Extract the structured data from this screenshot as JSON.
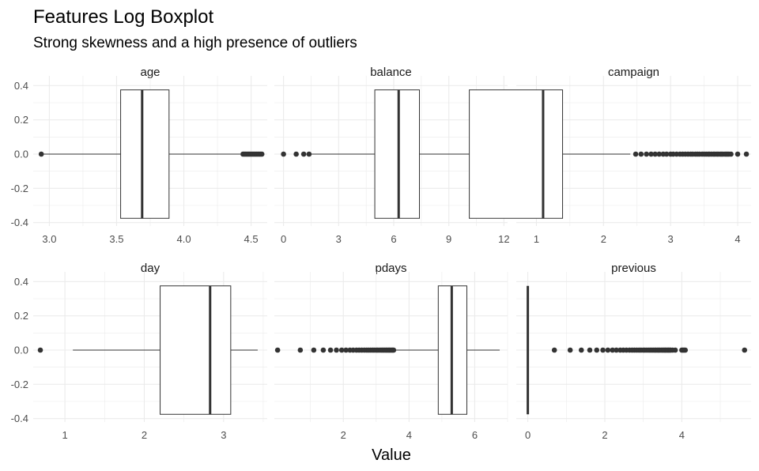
{
  "chart_data": {
    "type": "boxplot",
    "title": "Features Log Boxplot",
    "subtitle": "Strong skewness and a high presence of outliers",
    "xlabel": "Value",
    "ylabel": "",
    "grid": true,
    "ylim": [
      -0.42,
      0.42
    ],
    "y_ticks": [
      0.4,
      0.2,
      0.0,
      -0.2,
      -0.4
    ],
    "y_tick_labels": [
      "0.4",
      "0.2",
      "0.0",
      "-0.2",
      "-0.4"
    ],
    "box_half_width": 0.375,
    "point_color": "#333333",
    "box_stroke": "#333333",
    "grid_color": "#ebebeb",
    "panels": [
      {
        "name": "age",
        "xlim": [
          2.88,
          4.62
        ],
        "x_ticks": [
          3.0,
          3.5,
          4.0,
          4.5
        ],
        "x_tick_labels": [
          "3.0",
          "3.5",
          "4.0",
          "4.5"
        ],
        "box": {
          "lower_whisker": 2.94,
          "q1": 3.53,
          "median": 3.69,
          "q3": 3.89,
          "upper_whisker": 4.42
        },
        "outliers": [
          2.94,
          4.44,
          4.45,
          4.46,
          4.47,
          4.48,
          4.49,
          4.5,
          4.51,
          4.52,
          4.53,
          4.54,
          4.55,
          4.56,
          4.57,
          4.58
        ]
      },
      {
        "name": "balance",
        "xlim": [
          -0.5,
          12.2
        ],
        "x_ticks": [
          0,
          3,
          6,
          9,
          12
        ],
        "x_tick_labels": [
          "0",
          "3",
          "6",
          "9",
          "12"
        ],
        "box": {
          "lower_whisker": 1.5,
          "q1": 4.97,
          "median": 6.27,
          "q3": 7.4,
          "upper_whisker": 10.95
        },
        "outliers": [
          0,
          0.69,
          1.1,
          1.39,
          10.98,
          11.05,
          11.1,
          11.15,
          11.2,
          11.25,
          11.3,
          11.35,
          11.4,
          11.45,
          11.5
        ]
      },
      {
        "name": "campaign",
        "xlim": [
          0.7,
          4.2
        ],
        "x_ticks": [
          1,
          2,
          3,
          4
        ],
        "x_tick_labels": [
          "1",
          "2",
          "3",
          "4"
        ],
        "box": {
          "lower_whisker": 0.0,
          "q1": 0.0,
          "median": 1.1,
          "q3": 1.39,
          "upper_whisker": 2.4
        },
        "outliers": [
          2.48,
          2.56,
          2.64,
          2.71,
          2.77,
          2.83,
          2.89,
          2.94,
          3.0,
          3.04,
          3.09,
          3.14,
          3.18,
          3.22,
          3.26,
          3.3,
          3.33,
          3.37,
          3.4,
          3.43,
          3.47,
          3.5,
          3.53,
          3.56,
          3.58,
          3.61,
          3.64,
          3.66,
          3.69,
          3.71,
          3.74,
          3.76,
          3.78,
          3.81,
          3.83,
          3.85,
          3.87,
          3.9,
          4.0,
          4.13
        ]
      },
      {
        "name": "day",
        "xlim": [
          0.6,
          3.55
        ],
        "x_ticks": [
          1,
          2,
          3
        ],
        "x_tick_labels": [
          "1",
          "2",
          "3"
        ],
        "box": {
          "lower_whisker": 1.1,
          "q1": 2.2,
          "median": 2.83,
          "q3": 3.09,
          "upper_whisker": 3.43
        },
        "outliers": [
          0.69
        ]
      },
      {
        "name": "pdays",
        "xlim": [
          -0.1,
          7.0
        ],
        "x_ticks": [
          2,
          4,
          6
        ],
        "x_tick_labels": [
          "2",
          "4",
          "6"
        ],
        "box": {
          "lower_whisker": 3.55,
          "q1": 4.89,
          "median": 5.3,
          "q3": 5.76,
          "upper_whisker": 6.76
        },
        "outliers": [
          0,
          0.69,
          1.1,
          1.39,
          1.61,
          1.79,
          1.95,
          2.08,
          2.2,
          2.3,
          2.4,
          2.48,
          2.56,
          2.64,
          2.71,
          2.77,
          2.83,
          2.89,
          2.94,
          3.0,
          3.04,
          3.09,
          3.14,
          3.18,
          3.22,
          3.26,
          3.3,
          3.33,
          3.37,
          3.4,
          3.43,
          3.47,
          3.5,
          3.53
        ]
      },
      {
        "name": "previous",
        "xlim": [
          -0.3,
          5.8
        ],
        "x_ticks": [
          0,
          2,
          4
        ],
        "x_tick_labels": [
          "0",
          "2",
          "4"
        ],
        "box": {
          "lower_whisker": 0,
          "q1": 0,
          "median": 0,
          "q3": 0,
          "upper_whisker": 0
        },
        "outliers": [
          0.69,
          1.1,
          1.39,
          1.61,
          1.79,
          1.95,
          2.08,
          2.2,
          2.3,
          2.4,
          2.48,
          2.56,
          2.64,
          2.71,
          2.77,
          2.83,
          2.89,
          2.94,
          3.0,
          3.04,
          3.09,
          3.14,
          3.18,
          3.22,
          3.26,
          3.3,
          3.33,
          3.37,
          3.4,
          3.43,
          3.47,
          3.5,
          3.53,
          3.56,
          3.58,
          3.61,
          3.64,
          3.66,
          3.69,
          3.71,
          3.76,
          3.83,
          4.0,
          4.03,
          4.06,
          4.09,
          5.63
        ]
      }
    ]
  }
}
